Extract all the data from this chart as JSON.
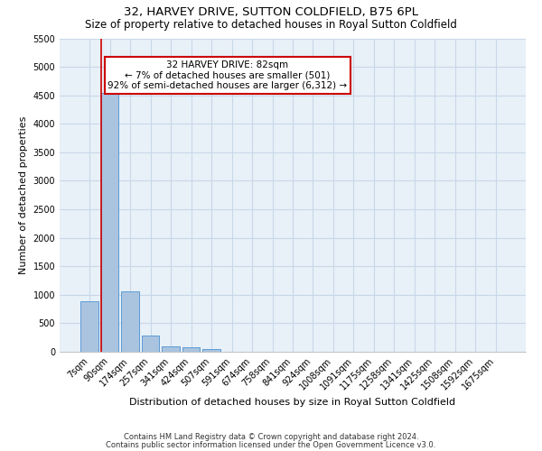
{
  "title": "32, HARVEY DRIVE, SUTTON COLDFIELD, B75 6PL",
  "subtitle": "Size of property relative to detached houses in Royal Sutton Coldfield",
  "xlabel": "Distribution of detached houses by size in Royal Sutton Coldfield",
  "ylabel": "Number of detached properties",
  "footnote1": "Contains HM Land Registry data © Crown copyright and database right 2024.",
  "footnote2": "Contains public sector information licensed under the Open Government Licence v3.0.",
  "bar_labels": [
    "7sqm",
    "90sqm",
    "174sqm",
    "257sqm",
    "341sqm",
    "424sqm",
    "507sqm",
    "591sqm",
    "674sqm",
    "758sqm",
    "841sqm",
    "924sqm",
    "1008sqm",
    "1091sqm",
    "1175sqm",
    "1258sqm",
    "1341sqm",
    "1425sqm",
    "1508sqm",
    "1592sqm",
    "1675sqm"
  ],
  "bar_values": [
    880,
    4550,
    1060,
    280,
    90,
    80,
    55,
    0,
    0,
    0,
    0,
    0,
    0,
    0,
    0,
    0,
    0,
    0,
    0,
    0,
    0
  ],
  "bar_color": "#aac4e0",
  "bar_edge_color": "#5b9bd5",
  "highlight_line_color": "#cc0000",
  "annotation_text": "32 HARVEY DRIVE: 82sqm\n← 7% of detached houses are smaller (501)\n92% of semi-detached houses are larger (6,312) →",
  "annotation_box_color": "#ffffff",
  "annotation_box_edge": "#cc0000",
  "ylim": [
    0,
    5500
  ],
  "yticks": [
    0,
    500,
    1000,
    1500,
    2000,
    2500,
    3000,
    3500,
    4000,
    4500,
    5000,
    5500
  ],
  "grid_color": "#c8d8e8",
  "bg_color": "#e8f0f8",
  "title_fontsize": 9.5,
  "subtitle_fontsize": 8.5,
  "xlabel_fontsize": 8,
  "ylabel_fontsize": 8,
  "tick_fontsize": 7,
  "footnote_fontsize": 6,
  "annotation_fontsize": 7.5
}
